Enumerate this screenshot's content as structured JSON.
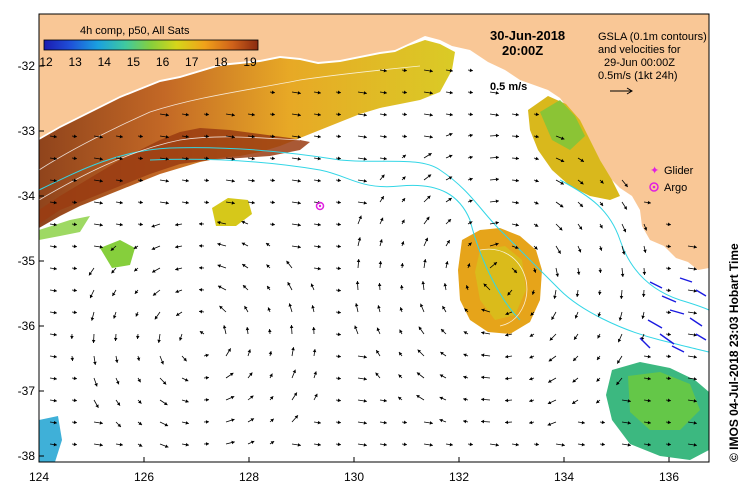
{
  "colorbar": {
    "title": "4h comp, p50, All Sats",
    "ticks": [
      "12",
      "13",
      "14",
      "15",
      "16",
      "17",
      "18",
      "19"
    ],
    "palette": [
      "#1b1bb0",
      "#1f4fd8",
      "#1aa0e0",
      "#3fc9a0",
      "#86cf3c",
      "#d6d61a",
      "#f0a21a",
      "#d0621a",
      "#8a2a10"
    ]
  },
  "header": {
    "date": "30-Jun-2018",
    "time": "20:00Z",
    "scale_label": "0.5 m/s"
  },
  "gsla_note": {
    "lines": [
      "GSLA (0.1m contours)",
      "and velocities for",
      "29-Jun 00:00Z",
      "0.5m/s (1kt 24h)"
    ]
  },
  "legend": {
    "glider": "Glider",
    "argo": "Argo"
  },
  "x_axis": {
    "ticks": [
      "124",
      "126",
      "128",
      "130",
      "132",
      "134",
      "136"
    ]
  },
  "y_axis": {
    "ticks": [
      "-32",
      "-33",
      "-34",
      "-35",
      "-36",
      "-37",
      "-38"
    ]
  },
  "credit": "© IMOS 04-Jul-2018 23:03 Hobart Time",
  "colors": {
    "land": "#f9c796",
    "sea": "#ffffff",
    "contour": "#33d6e6",
    "glider": "#e020e0",
    "argo": "#e020e0"
  }
}
